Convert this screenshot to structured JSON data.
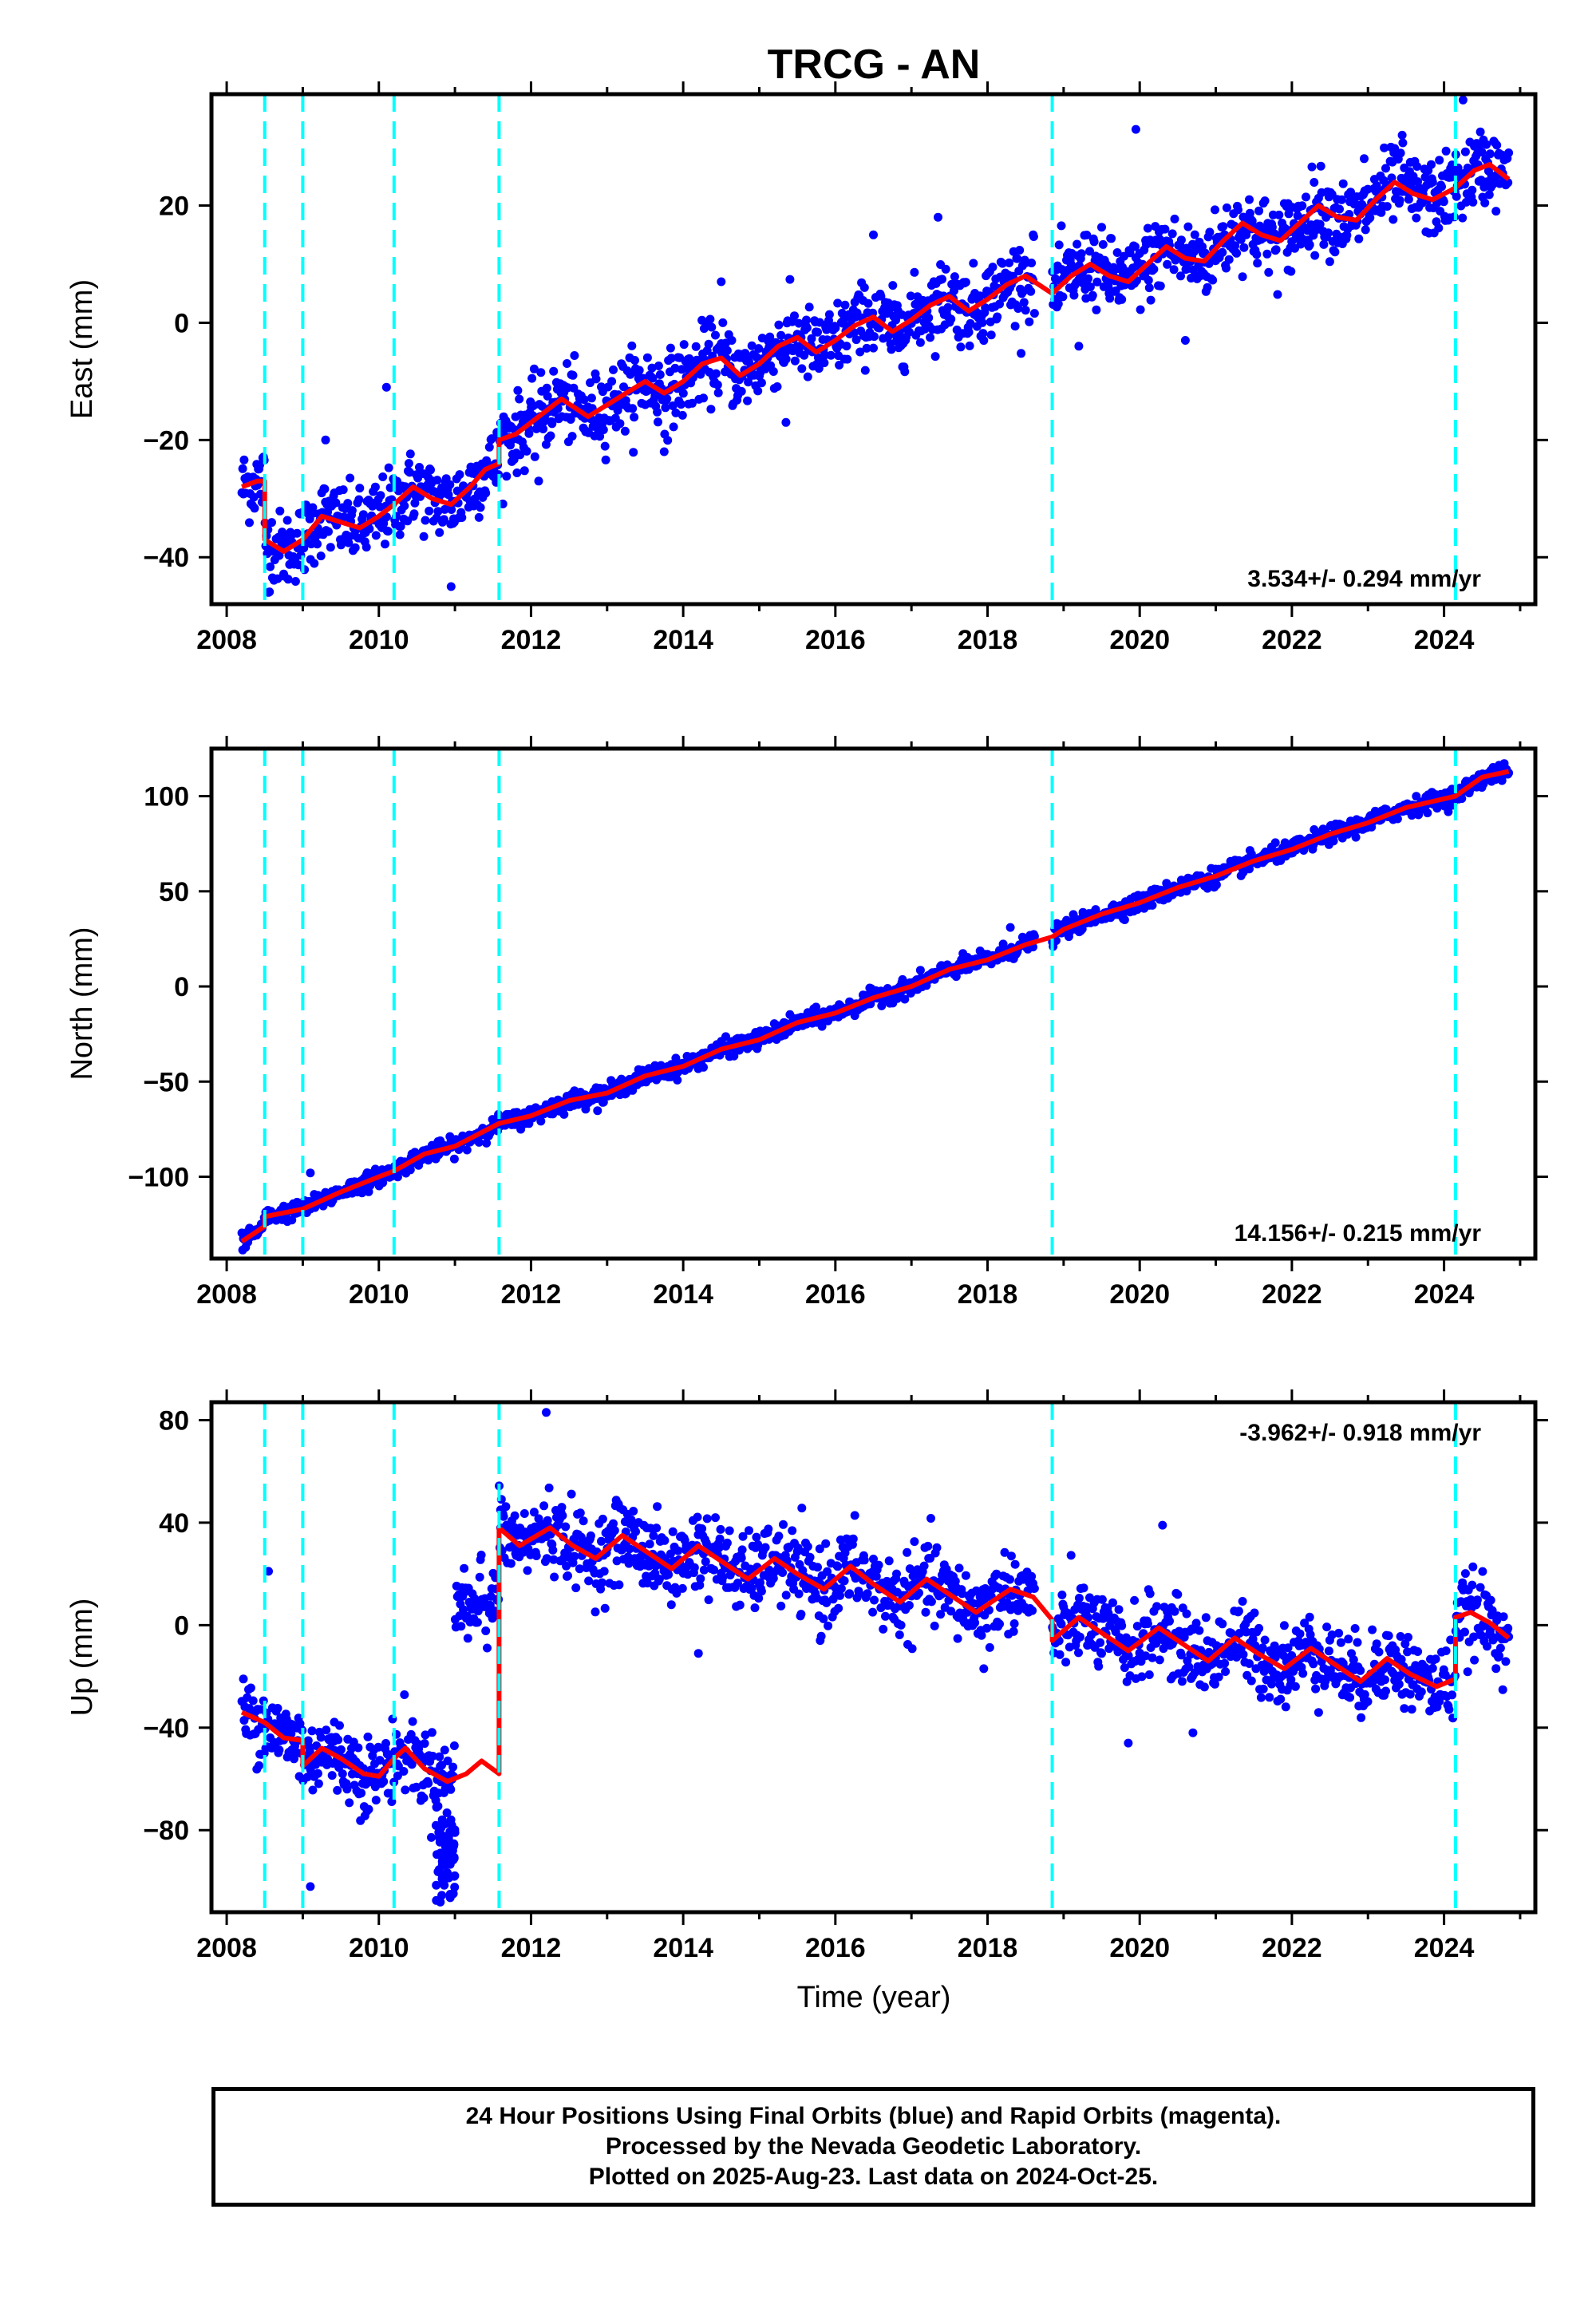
{
  "chart_data": {
    "title": "TRCG - AN",
    "type": "scatter",
    "xlabel": "Time (year)",
    "xlim": [
      2007.8,
      2025.2
    ],
    "xticks": [
      2008,
      2010,
      2012,
      2014,
      2016,
      2018,
      2020,
      2022,
      2024
    ],
    "breaks": [
      2008.5,
      2009.0,
      2010.2,
      2011.58,
      2018.85,
      2024.15
    ],
    "colors": {
      "data": "#0000ff",
      "model": "#ff0000",
      "breaks": "#00ffff"
    },
    "panels": [
      {
        "name": "East",
        "ylabel": "East (mm)",
        "ylim": [
          -48,
          39
        ],
        "yticks": [
          -40,
          -20,
          0,
          20
        ],
        "rate": "3.534+/- 0.294 mm/yr",
        "rate_position": "bottom-right",
        "noise": 3.2,
        "model": [
          [
            2008.2,
            -28
          ],
          [
            2008.4,
            -27
          ],
          [
            2008.5,
            -27
          ],
          [
            2008.5,
            -37
          ],
          [
            2008.75,
            -39
          ],
          [
            2009.0,
            -37
          ],
          [
            2009.25,
            -33
          ],
          [
            2009.5,
            -34
          ],
          [
            2009.75,
            -35
          ],
          [
            2010.0,
            -33
          ],
          [
            2010.2,
            -31
          ],
          [
            2010.45,
            -28
          ],
          [
            2010.7,
            -30
          ],
          [
            2010.95,
            -31
          ],
          [
            2011.2,
            -28
          ],
          [
            2011.4,
            -25
          ],
          [
            2011.58,
            -24
          ],
          [
            2011.58,
            -20
          ],
          [
            2011.8,
            -19
          ],
          [
            2012.1,
            -16
          ],
          [
            2012.4,
            -13
          ],
          [
            2012.75,
            -16
          ],
          [
            2013.0,
            -14
          ],
          [
            2013.25,
            -12
          ],
          [
            2013.5,
            -10
          ],
          [
            2013.75,
            -12
          ],
          [
            2014.0,
            -10
          ],
          [
            2014.25,
            -7
          ],
          [
            2014.5,
            -6
          ],
          [
            2014.75,
            -9
          ],
          [
            2015.0,
            -7
          ],
          [
            2015.25,
            -4
          ],
          [
            2015.5,
            -2.5
          ],
          [
            2015.75,
            -5
          ],
          [
            2016.0,
            -3
          ],
          [
            2016.25,
            -0.5
          ],
          [
            2016.5,
            1
          ],
          [
            2016.75,
            -1.5
          ],
          [
            2017.0,
            0.5
          ],
          [
            2017.25,
            3
          ],
          [
            2017.5,
            4.5
          ],
          [
            2017.75,
            2
          ],
          [
            2018.0,
            4
          ],
          [
            2018.25,
            6.5
          ],
          [
            2018.5,
            8
          ],
          [
            2018.85,
            5
          ],
          [
            2019.1,
            8
          ],
          [
            2019.35,
            10
          ],
          [
            2019.6,
            8
          ],
          [
            2019.85,
            7
          ],
          [
            2020.1,
            10
          ],
          [
            2020.35,
            13
          ],
          [
            2020.6,
            11
          ],
          [
            2020.85,
            10.5
          ],
          [
            2021.1,
            14
          ],
          [
            2021.35,
            17
          ],
          [
            2021.6,
            15
          ],
          [
            2021.85,
            14
          ],
          [
            2022.1,
            17
          ],
          [
            2022.35,
            20
          ],
          [
            2022.6,
            18
          ],
          [
            2022.85,
            17.5
          ],
          [
            2023.1,
            21
          ],
          [
            2023.35,
            24
          ],
          [
            2023.6,
            22
          ],
          [
            2023.85,
            21
          ],
          [
            2024.15,
            23
          ],
          [
            2024.4,
            26
          ],
          [
            2024.6,
            27
          ],
          [
            2024.85,
            24.5
          ]
        ],
        "outliers": [
          [
            2010.1,
            -11
          ],
          [
            2019.95,
            33
          ],
          [
            2024.25,
            38
          ],
          [
            2023.45,
            32
          ],
          [
            2017.35,
            18
          ],
          [
            2014.5,
            7
          ],
          [
            2016.5,
            15
          ],
          [
            2008.55,
            -46
          ],
          [
            2010.95,
            -45
          ],
          [
            2012.1,
            -27
          ],
          [
            2013.75,
            -22
          ],
          [
            2015.35,
            -17
          ],
          [
            2019.2,
            -4
          ],
          [
            2020.6,
            -3
          ],
          [
            2021.95,
            9
          ],
          [
            2009.3,
            -20
          ],
          [
            2018.6,
            15
          ],
          [
            2022.95,
            28
          ]
        ]
      },
      {
        "name": "North",
        "ylabel": "North (mm)",
        "ylim": [
          -143,
          125
        ],
        "yticks": [
          -100,
          -50,
          0,
          50,
          100
        ],
        "rate": "14.156+/- 0.215 mm/yr",
        "rate_position": "bottom-right",
        "noise": 2.2,
        "model": [
          [
            2008.2,
            -134
          ],
          [
            2008.5,
            -126
          ],
          [
            2008.5,
            -121
          ],
          [
            2009.0,
            -117
          ],
          [
            2009.5,
            -108
          ],
          [
            2010.0,
            -100
          ],
          [
            2010.2,
            -97
          ],
          [
            2010.6,
            -88
          ],
          [
            2011.0,
            -84
          ],
          [
            2011.58,
            -72
          ],
          [
            2012.0,
            -68
          ],
          [
            2012.5,
            -60
          ],
          [
            2013.0,
            -56
          ],
          [
            2013.5,
            -47
          ],
          [
            2014.0,
            -42
          ],
          [
            2014.5,
            -33
          ],
          [
            2015.0,
            -28
          ],
          [
            2015.5,
            -19
          ],
          [
            2016.0,
            -14
          ],
          [
            2016.5,
            -6
          ],
          [
            2017.0,
            0
          ],
          [
            2017.5,
            9
          ],
          [
            2018.0,
            14
          ],
          [
            2018.5,
            22
          ],
          [
            2018.85,
            26
          ],
          [
            2019.0,
            30
          ],
          [
            2019.5,
            38
          ],
          [
            2020.0,
            44
          ],
          [
            2020.5,
            52
          ],
          [
            2021.0,
            58
          ],
          [
            2021.5,
            66
          ],
          [
            2022.0,
            72
          ],
          [
            2022.5,
            80
          ],
          [
            2023.0,
            86
          ],
          [
            2023.5,
            94
          ],
          [
            2024.15,
            100
          ],
          [
            2024.5,
            110
          ],
          [
            2024.85,
            113
          ]
        ],
        "outliers": [
          [
            2009.1,
            -98
          ],
          [
            2008.3,
            -127
          ],
          [
            2018.3,
            31
          ]
        ]
      },
      {
        "name": "Up",
        "ylabel": "Up (mm)",
        "ylim": [
          -112,
          87
        ],
        "yticks": [
          -80,
          -40,
          0,
          40,
          80
        ],
        "rate": "-3.962+/- 0.918 mm/yr",
        "rate_position": "top-right",
        "noise": 7.5,
        "model": [
          [
            2008.2,
            -34
          ],
          [
            2008.5,
            -38
          ],
          [
            2008.75,
            -44
          ],
          [
            2009.0,
            -45
          ],
          [
            2009.0,
            -55
          ],
          [
            2009.25,
            -48
          ],
          [
            2009.5,
            -52
          ],
          [
            2009.8,
            -58
          ],
          [
            2010.0,
            -59
          ],
          [
            2010.2,
            -52
          ],
          [
            2010.35,
            -48
          ],
          [
            2010.6,
            -56
          ],
          [
            2010.9,
            -61
          ],
          [
            2011.15,
            -58
          ],
          [
            2011.35,
            -53
          ],
          [
            2011.58,
            -58
          ],
          [
            2011.58,
            38
          ],
          [
            2011.85,
            31
          ],
          [
            2012.25,
            38
          ],
          [
            2012.55,
            31
          ],
          [
            2012.85,
            26
          ],
          [
            2013.2,
            35
          ],
          [
            2013.5,
            29
          ],
          [
            2013.85,
            22
          ],
          [
            2014.2,
            31
          ],
          [
            2014.5,
            25
          ],
          [
            2014.85,
            18
          ],
          [
            2015.2,
            26
          ],
          [
            2015.5,
            20
          ],
          [
            2015.85,
            14
          ],
          [
            2016.2,
            23
          ],
          [
            2016.5,
            16
          ],
          [
            2016.85,
            9
          ],
          [
            2017.2,
            18
          ],
          [
            2017.5,
            12
          ],
          [
            2017.85,
            5
          ],
          [
            2018.3,
            14
          ],
          [
            2018.6,
            11
          ],
          [
            2018.85,
            2
          ],
          [
            2018.85,
            -6
          ],
          [
            2019.2,
            3
          ],
          [
            2019.5,
            -3
          ],
          [
            2019.85,
            -10
          ],
          [
            2020.25,
            -1
          ],
          [
            2020.55,
            -7
          ],
          [
            2020.9,
            -14
          ],
          [
            2021.25,
            -5
          ],
          [
            2021.55,
            -11
          ],
          [
            2021.9,
            -17
          ],
          [
            2022.25,
            -9
          ],
          [
            2022.55,
            -15
          ],
          [
            2022.9,
            -22
          ],
          [
            2023.25,
            -13
          ],
          [
            2023.55,
            -19
          ],
          [
            2023.9,
            -24
          ],
          [
            2024.15,
            -21
          ],
          [
            2024.15,
            3
          ],
          [
            2024.35,
            5
          ],
          [
            2024.6,
            1
          ],
          [
            2024.85,
            -5
          ]
        ],
        "segments": [
          [
            2011.0,
            2011.58,
            10,
            7
          ]
        ],
        "extra_clusters": [
          [
            2010.75,
            2011.0,
            -90,
            8
          ]
        ],
        "outliers": [
          [
            2008.55,
            21
          ],
          [
            2012.2,
            83
          ],
          [
            2014.2,
            -11
          ],
          [
            2009.1,
            -102
          ],
          [
            2020.3,
            39
          ],
          [
            2019.85,
            -46
          ],
          [
            2020.7,
            -42
          ],
          [
            2017.95,
            -17
          ],
          [
            2011.6,
            45
          ],
          [
            2015.8,
            -6
          ]
        ]
      }
    ]
  },
  "footer": {
    "line1": "24 Hour Positions Using Final Orbits (blue) and Rapid Orbits (magenta).",
    "line2": "Processed by the Nevada Geodetic Laboratory.",
    "line3": "Plotted on 2025-Aug-23. Last data on 2024-Oct-25."
  }
}
